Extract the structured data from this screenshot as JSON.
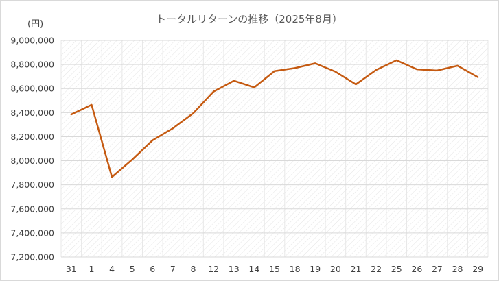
{
  "chart_data": {
    "type": "line",
    "title": "トータルリターンの推移（2025年8月）",
    "ylabel": "(円)",
    "xlabel": "",
    "categories": [
      "31",
      "1",
      "4",
      "5",
      "6",
      "7",
      "8",
      "12",
      "13",
      "14",
      "15",
      "18",
      "19",
      "20",
      "21",
      "22",
      "25",
      "26",
      "27",
      "28",
      "29"
    ],
    "series": [
      {
        "values": [
          8385000,
          8465000,
          7865000,
          8010000,
          8170000,
          8270000,
          8395000,
          8575000,
          8665000,
          8610000,
          8745000,
          8770000,
          8810000,
          8740000,
          8635000,
          8755000,
          8835000,
          8760000,
          8750000,
          8790000,
          8695000
        ],
        "color": "#C55A11"
      }
    ],
    "ylim": [
      7200000,
      9000000
    ],
    "yticks": [
      7200000,
      7400000,
      7600000,
      7800000,
      8000000,
      8200000,
      8400000,
      8600000,
      8800000,
      9000000
    ],
    "ytick_labels": [
      "7,200,000",
      "7,400,000",
      "7,600,000",
      "7,800,000",
      "8,000,000",
      "8,200,000",
      "8,400,000",
      "8,600,000",
      "8,800,000",
      "9,000,000"
    ],
    "grid": true,
    "legend": "none"
  }
}
